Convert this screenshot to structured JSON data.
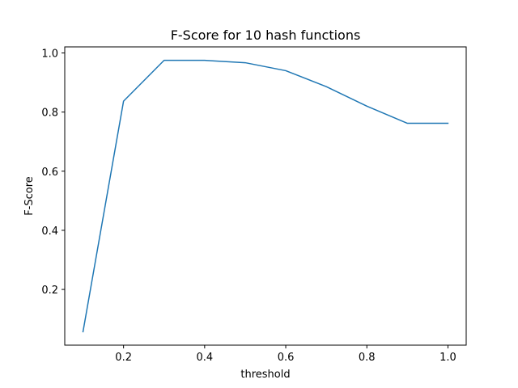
{
  "chart_data": {
    "type": "line",
    "title": "F-Score for 10 hash functions",
    "xlabel": "threshold",
    "ylabel": "F-Score",
    "xlim": [
      0.055,
      1.045
    ],
    "ylim": [
      0.0115,
      1.0205
    ],
    "xticks": [
      0.2,
      0.4,
      0.6,
      0.8,
      1.0
    ],
    "xtick_labels": [
      "0.2",
      "0.4",
      "0.6",
      "0.8",
      "1.0"
    ],
    "yticks": [
      0.2,
      0.4,
      0.6,
      0.8,
      1.0
    ],
    "ytick_labels": [
      "0.2",
      "0.4",
      "0.6",
      "0.8",
      "1.0"
    ],
    "grid": false,
    "series": [
      {
        "name": "F-Score",
        "color": "#1f77b4",
        "x": [
          0.1,
          0.2,
          0.3,
          0.4,
          0.5,
          0.6,
          0.7,
          0.8,
          0.9,
          1.0
        ],
        "y": [
          0.057,
          0.837,
          0.975,
          0.975,
          0.967,
          0.94,
          0.886,
          0.82,
          0.762,
          0.762
        ]
      }
    ]
  }
}
